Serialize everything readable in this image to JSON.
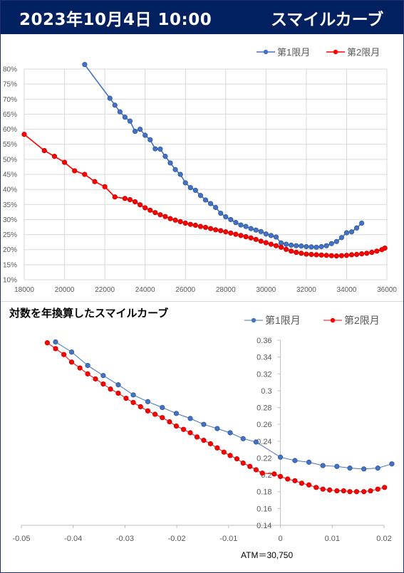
{
  "header": {
    "date": "2023年10月4日 10:00",
    "title": "スマイルカーブ"
  },
  "colors": {
    "series1": "#4472C4",
    "series2": "#FF0000",
    "header_bg": "#002060"
  },
  "chart_data": [
    {
      "type": "line",
      "title": "",
      "legend": "top-right",
      "grid": true,
      "xlim": [
        18000,
        36000
      ],
      "ylim": [
        0.1,
        0.8
      ],
      "x_ticks": [
        "18000",
        "20000",
        "22000",
        "24000",
        "26000",
        "28000",
        "30000",
        "32000",
        "34000",
        "36000"
      ],
      "y_ticks": [
        "10%",
        "15%",
        "20%",
        "25%",
        "30%",
        "35%",
        "40%",
        "45%",
        "50%",
        "55%",
        "60%",
        "65%",
        "70%",
        "75%",
        "80%"
      ],
      "series": [
        {
          "name": "第1限月",
          "points": [
            [
              21000,
              0.815
            ],
            [
              22250,
              0.703
            ],
            [
              22500,
              0.68
            ],
            [
              22750,
              0.658
            ],
            [
              23000,
              0.64
            ],
            [
              23250,
              0.627
            ],
            [
              23500,
              0.593
            ],
            [
              23750,
              0.6
            ],
            [
              24000,
              0.58
            ],
            [
              24250,
              0.565
            ],
            [
              24500,
              0.535
            ],
            [
              24750,
              0.534
            ],
            [
              25000,
              0.51
            ],
            [
              25250,
              0.488
            ],
            [
              25500,
              0.466
            ],
            [
              25750,
              0.45
            ],
            [
              26000,
              0.422
            ],
            [
              26250,
              0.406
            ],
            [
              26500,
              0.397
            ],
            [
              26750,
              0.38
            ],
            [
              27000,
              0.365
            ],
            [
              27250,
              0.353
            ],
            [
              27500,
              0.34
            ],
            [
              27750,
              0.321
            ],
            [
              28000,
              0.309
            ],
            [
              28250,
              0.3
            ],
            [
              28500,
              0.29
            ],
            [
              28750,
              0.282
            ],
            [
              29000,
              0.277
            ],
            [
              29250,
              0.27
            ],
            [
              29500,
              0.265
            ],
            [
              29750,
              0.26
            ],
            [
              30000,
              0.252
            ],
            [
              30250,
              0.247
            ],
            [
              30500,
              0.242
            ],
            [
              30750,
              0.222
            ],
            [
              31000,
              0.218
            ],
            [
              31250,
              0.215
            ],
            [
              31500,
              0.213
            ],
            [
              31750,
              0.212
            ],
            [
              32000,
              0.21
            ],
            [
              32250,
              0.209
            ],
            [
              32500,
              0.208
            ],
            [
              32750,
              0.21
            ],
            [
              33000,
              0.213
            ],
            [
              33250,
              0.22
            ],
            [
              33500,
              0.227
            ],
            [
              33750,
              0.24
            ],
            [
              34000,
              0.256
            ],
            [
              34250,
              0.259
            ],
            [
              34500,
              0.272
            ],
            [
              34750,
              0.288
            ]
          ]
        },
        {
          "name": "第2限月",
          "points": [
            [
              18000,
              0.583
            ],
            [
              19000,
              0.529
            ],
            [
              19500,
              0.51
            ],
            [
              20000,
              0.49
            ],
            [
              20500,
              0.462
            ],
            [
              21000,
              0.45
            ],
            [
              21500,
              0.426
            ],
            [
              22000,
              0.409
            ],
            [
              22500,
              0.375
            ],
            [
              23000,
              0.37
            ],
            [
              23250,
              0.366
            ],
            [
              23500,
              0.359
            ],
            [
              23750,
              0.349
            ],
            [
              24000,
              0.339
            ],
            [
              24250,
              0.331
            ],
            [
              24500,
              0.323
            ],
            [
              24750,
              0.316
            ],
            [
              25000,
              0.31
            ],
            [
              25250,
              0.303
            ],
            [
              25500,
              0.298
            ],
            [
              25750,
              0.293
            ],
            [
              26000,
              0.288
            ],
            [
              26250,
              0.284
            ],
            [
              26500,
              0.281
            ],
            [
              26750,
              0.277
            ],
            [
              27000,
              0.274
            ],
            [
              27250,
              0.27
            ],
            [
              27500,
              0.266
            ],
            [
              27750,
              0.263
            ],
            [
              28000,
              0.259
            ],
            [
              28250,
              0.255
            ],
            [
              28500,
              0.251
            ],
            [
              28750,
              0.247
            ],
            [
              29000,
              0.243
            ],
            [
              29250,
              0.239
            ],
            [
              29500,
              0.234
            ],
            [
              29750,
              0.228
            ],
            [
              30000,
              0.223
            ],
            [
              30250,
              0.218
            ],
            [
              30500,
              0.213
            ],
            [
              30750,
              0.208
            ],
            [
              31000,
              0.201
            ],
            [
              31250,
              0.195
            ],
            [
              31500,
              0.191
            ],
            [
              31750,
              0.188
            ],
            [
              32000,
              0.185
            ],
            [
              32250,
              0.184
            ],
            [
              32500,
              0.183
            ],
            [
              32750,
              0.182
            ],
            [
              33000,
              0.181
            ],
            [
              33250,
              0.18
            ],
            [
              33500,
              0.179
            ],
            [
              33750,
              0.18
            ],
            [
              34000,
              0.181
            ],
            [
              34250,
              0.183
            ],
            [
              34500,
              0.184
            ],
            [
              34750,
              0.186
            ],
            [
              35000,
              0.188
            ],
            [
              35250,
              0.191
            ],
            [
              35500,
              0.195
            ],
            [
              35750,
              0.2
            ],
            [
              35900,
              0.205
            ]
          ]
        }
      ]
    },
    {
      "type": "line",
      "title": "対数を年換算したスマイルカーブ",
      "legend": "top-right",
      "grid": false,
      "xlim": [
        -0.05,
        0.02
      ],
      "ylim": [
        0.14,
        0.36
      ],
      "x_ticks": [
        "-0.05",
        "-0.04",
        "-0.03",
        "-0.02",
        "-0.01",
        "0",
        "0.01",
        "0.02"
      ],
      "y_ticks": [
        "0.14",
        "0.16",
        "0.18",
        "0.2",
        "0.22",
        "0.24",
        "0.26",
        "0.28",
        "0.3",
        "0.32",
        "0.34",
        "0.36"
      ],
      "annotation": "ATM＝30,750",
      "series": [
        {
          "name": "第1限月",
          "points": [
            [
              -0.0434,
              0.358
            ],
            [
              -0.0403,
              0.346
            ],
            [
              -0.0372,
              0.33
            ],
            [
              -0.0342,
              0.318
            ],
            [
              -0.0313,
              0.307
            ],
            [
              -0.0284,
              0.295
            ],
            [
              -0.0256,
              0.287
            ],
            [
              -0.0228,
              0.28
            ],
            [
              -0.0201,
              0.273
            ],
            [
              -0.0174,
              0.267
            ],
            [
              -0.0148,
              0.26
            ],
            [
              -0.0122,
              0.255
            ],
            [
              -0.0097,
              0.25
            ],
            [
              -0.0072,
              0.243
            ],
            [
              -0.0047,
              0.239
            ],
            [
              0.0,
              0.221
            ],
            [
              0.0028,
              0.217
            ],
            [
              0.0055,
              0.215
            ],
            [
              0.0082,
              0.211
            ],
            [
              0.0109,
              0.21
            ],
            [
              0.0134,
              0.208
            ],
            [
              0.0161,
              0.207
            ],
            [
              0.0188,
              0.208
            ],
            [
              0.0215,
              0.213
            ]
          ]
        },
        {
          "name": "第2限月",
          "points": [
            [
              -0.045,
              0.357
            ],
            [
              -0.0434,
              0.35
            ],
            [
              -0.0418,
              0.343
            ],
            [
              -0.0403,
              0.334
            ],
            [
              -0.0387,
              0.327
            ],
            [
              -0.0372,
              0.32
            ],
            [
              -0.0357,
              0.314
            ],
            [
              -0.0342,
              0.308
            ],
            [
              -0.0328,
              0.302
            ],
            [
              -0.0313,
              0.297
            ],
            [
              -0.0298,
              0.291
            ],
            [
              -0.0284,
              0.286
            ],
            [
              -0.027,
              0.281
            ],
            [
              -0.0256,
              0.276
            ],
            [
              -0.0242,
              0.272
            ],
            [
              -0.0228,
              0.268
            ],
            [
              -0.0214,
              0.263
            ],
            [
              -0.0201,
              0.258
            ],
            [
              -0.0187,
              0.254
            ],
            [
              -0.0174,
              0.25
            ],
            [
              -0.0161,
              0.245
            ],
            [
              -0.0148,
              0.241
            ],
            [
              -0.0135,
              0.237
            ],
            [
              -0.0122,
              0.232
            ],
            [
              -0.0109,
              0.227
            ],
            [
              -0.0097,
              0.223
            ],
            [
              -0.0084,
              0.219
            ],
            [
              -0.0072,
              0.214
            ],
            [
              -0.0059,
              0.21
            ],
            [
              -0.0047,
              0.206
            ],
            [
              -0.0035,
              0.202
            ],
            [
              -0.0012,
              0.201
            ],
            [
              0.0,
              0.198
            ],
            [
              0.0014,
              0.195
            ],
            [
              0.0028,
              0.193
            ],
            [
              0.0041,
              0.19
            ],
            [
              0.0055,
              0.188
            ],
            [
              0.0069,
              0.185
            ],
            [
              0.0082,
              0.183
            ],
            [
              0.0095,
              0.182
            ],
            [
              0.0109,
              0.181
            ],
            [
              0.0122,
              0.181
            ],
            [
              0.0134,
              0.18
            ],
            [
              0.0147,
              0.18
            ],
            [
              0.0161,
              0.18
            ],
            [
              0.0174,
              0.181
            ],
            [
              0.0188,
              0.183
            ],
            [
              0.0201,
              0.185
            ]
          ]
        }
      ]
    }
  ]
}
